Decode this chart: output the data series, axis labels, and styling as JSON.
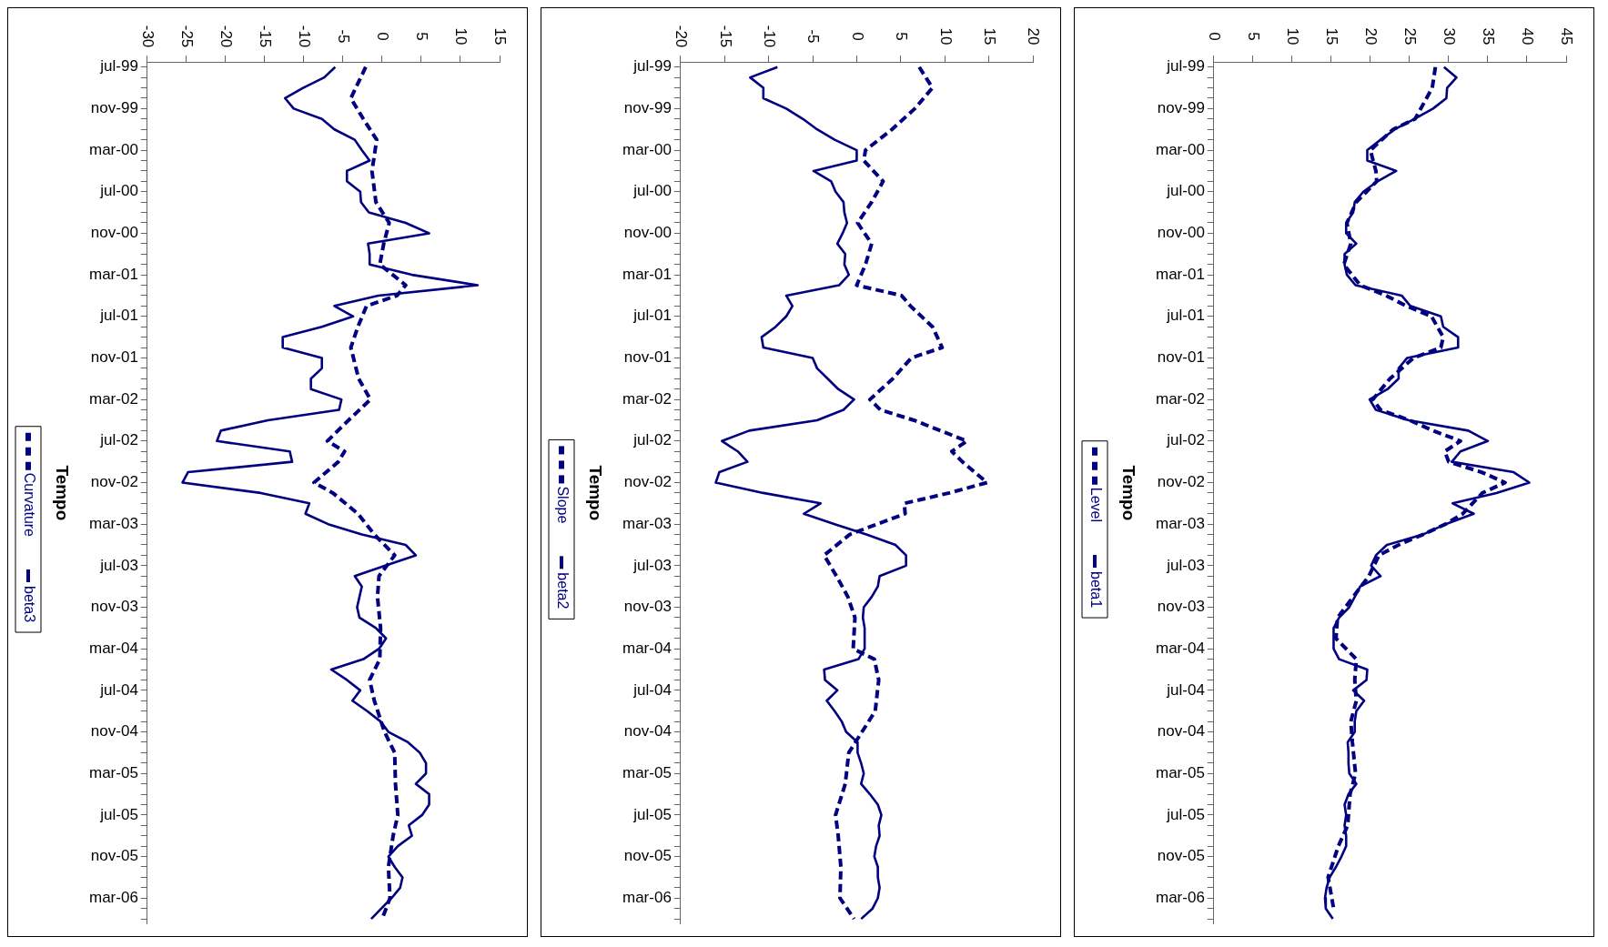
{
  "chart_data": [
    {
      "type": "line",
      "orientation": "horizontal",
      "ylabel": "Tempo",
      "marker": "none",
      "grid": false,
      "legend": "left",
      "x": [
        "1999-07",
        "1999-08",
        "1999-09",
        "1999-10",
        "1999-11",
        "1999-12",
        "2000-01",
        "2000-02",
        "2000-03",
        "2000-04",
        "2000-05",
        "2000-06",
        "2000-07",
        "2000-08",
        "2000-09",
        "2000-10",
        "2000-11",
        "2000-12",
        "2001-01",
        "2001-02",
        "2001-03",
        "2001-04",
        "2001-05",
        "2001-06",
        "2001-07",
        "2001-08",
        "2001-09",
        "2001-10",
        "2001-11",
        "2001-12",
        "2002-01",
        "2002-02",
        "2002-03",
        "2002-04",
        "2002-05",
        "2002-06",
        "2002-07",
        "2002-08",
        "2002-09",
        "2002-10",
        "2002-11",
        "2002-12",
        "2003-01",
        "2003-02",
        "2003-03",
        "2003-04",
        "2003-05",
        "2003-06",
        "2003-07",
        "2003-08",
        "2003-09",
        "2003-10",
        "2003-11",
        "2003-12",
        "2004-01",
        "2004-02",
        "2004-03",
        "2004-04",
        "2004-05",
        "2004-06",
        "2004-07",
        "2004-08",
        "2004-09",
        "2004-10",
        "2004-11",
        "2004-12",
        "2005-01",
        "2005-02",
        "2005-03",
        "2005-04",
        "2005-05",
        "2005-06",
        "2005-07",
        "2005-08",
        "2005-09",
        "2005-10",
        "2005-11",
        "2005-12",
        "2006-01",
        "2006-02",
        "2006-03",
        "2006-04",
        "2006-05"
      ],
      "ylim": [
        "2006-05-16",
        "1999-06-16"
      ],
      "yticks": [
        {
          "value": "1999-07",
          "label": "jul-99"
        },
        {
          "value": "1999-08",
          "label": null
        },
        {
          "value": "1999-09",
          "label": null
        },
        {
          "value": "1999-10",
          "label": null
        },
        {
          "value": "1999-11",
          "label": "nov-99"
        },
        {
          "value": "1999-12",
          "label": null
        },
        {
          "value": "2000-01",
          "label": null
        },
        {
          "value": "2000-02",
          "label": null
        },
        {
          "value": "2000-03",
          "label": "mar-00"
        },
        {
          "value": "2000-04",
          "label": null
        },
        {
          "value": "2000-05",
          "label": null
        },
        {
          "value": "2000-06",
          "label": null
        },
        {
          "value": "2000-07",
          "label": "jul-00"
        },
        {
          "value": "2000-08",
          "label": null
        },
        {
          "value": "2000-09",
          "label": null
        },
        {
          "value": "2000-10",
          "label": null
        },
        {
          "value": "2000-11",
          "label": "nov-00"
        },
        {
          "value": "2000-12",
          "label": null
        },
        {
          "value": "2001-01",
          "label": null
        },
        {
          "value": "2001-02",
          "label": null
        },
        {
          "value": "2001-03",
          "label": "mar-01"
        },
        {
          "value": "2001-04",
          "label": null
        },
        {
          "value": "2001-05",
          "label": null
        },
        {
          "value": "2001-06",
          "label": null
        },
        {
          "value": "2001-07",
          "label": "jul-01"
        },
        {
          "value": "2001-08",
          "label": null
        },
        {
          "value": "2001-09",
          "label": null
        },
        {
          "value": "2001-10",
          "label": null
        },
        {
          "value": "2001-11",
          "label": "nov-01"
        },
        {
          "value": "2001-12",
          "label": null
        },
        {
          "value": "2002-01",
          "label": null
        },
        {
          "value": "2002-02",
          "label": null
        },
        {
          "value": "2002-03",
          "label": "mar-02"
        },
        {
          "value": "2002-04",
          "label": null
        },
        {
          "value": "2002-05",
          "label": null
        },
        {
          "value": "2002-06",
          "label": null
        },
        {
          "value": "2002-07",
          "label": "jul-02"
        },
        {
          "value": "2002-08",
          "label": null
        },
        {
          "value": "2002-09",
          "label": null
        },
        {
          "value": "2002-10",
          "label": null
        },
        {
          "value": "2002-11",
          "label": "nov-02"
        },
        {
          "value": "2002-12",
          "label": null
        },
        {
          "value": "2003-01",
          "label": null
        },
        {
          "value": "2003-02",
          "label": null
        },
        {
          "value": "2003-03",
          "label": "mar-03"
        },
        {
          "value": "2003-04",
          "label": null
        },
        {
          "value": "2003-05",
          "label": null
        },
        {
          "value": "2003-06",
          "label": null
        },
        {
          "value": "2003-07",
          "label": "jul-03"
        },
        {
          "value": "2003-08",
          "label": null
        },
        {
          "value": "2003-09",
          "label": null
        },
        {
          "value": "2003-10",
          "label": null
        },
        {
          "value": "2003-11",
          "label": "nov-03"
        },
        {
          "value": "2003-12",
          "label": null
        },
        {
          "value": "2004-01",
          "label": null
        },
        {
          "value": "2004-02",
          "label": null
        },
        {
          "value": "2004-03",
          "label": "mar-04"
        },
        {
          "value": "2004-04",
          "label": null
        },
        {
          "value": "2004-05",
          "label": null
        },
        {
          "value": "2004-06",
          "label": null
        },
        {
          "value": "2004-07",
          "label": "jul-04"
        },
        {
          "value": "2004-08",
          "label": null
        },
        {
          "value": "2004-09",
          "label": null
        },
        {
          "value": "2004-10",
          "label": null
        },
        {
          "value": "2004-11",
          "label": "nov-04"
        },
        {
          "value": "2004-12",
          "label": null
        },
        {
          "value": "2005-01",
          "label": null
        },
        {
          "value": "2005-02",
          "label": null
        },
        {
          "value": "2005-03",
          "label": "mar-05"
        },
        {
          "value": "2005-04",
          "label": null
        },
        {
          "value": "2005-05",
          "label": null
        },
        {
          "value": "2005-06",
          "label": null
        },
        {
          "value": "2005-07",
          "label": "jul-05"
        },
        {
          "value": "2005-08",
          "label": null
        },
        {
          "value": "2005-09",
          "label": null
        },
        {
          "value": "2005-10",
          "label": null
        },
        {
          "value": "2005-11",
          "label": "nov-05"
        },
        {
          "value": "2005-12",
          "label": null
        },
        {
          "value": "2006-01",
          "label": null
        },
        {
          "value": "2006-02",
          "label": null
        },
        {
          "value": "2006-03",
          "label": "mar-06"
        },
        {
          "value": "2006-04",
          "label": null
        },
        {
          "value": "2006-05",
          "label": null
        }
      ],
      "xlim": [
        0,
        45
      ],
      "xticks": [
        0,
        5,
        10,
        15,
        20,
        25,
        30,
        35,
        40,
        45
      ],
      "series": [
        {
          "name": "Level",
          "color": "#000080",
          "line_style": "dashed",
          "x": [
            "1999-07",
            "1999-09",
            "1999-12",
            "2000-01",
            "2000-03",
            "2000-05",
            "2000-06",
            "2000-08",
            "2000-10",
            "2000-12",
            "2001-02",
            "2001-04",
            "2001-05",
            "2001-06",
            "2001-07",
            "2001-09",
            "2001-10",
            "2001-11",
            "2002-01",
            "2002-03",
            "2002-04",
            "2002-05",
            "2002-06",
            "2002-07",
            "2002-08",
            "2002-09",
            "2002-10",
            "2002-11",
            "2002-12",
            "2003-02",
            "2003-03",
            "2003-04",
            "2003-05",
            "2003-06",
            "2003-08",
            "2003-10",
            "2003-12",
            "2004-02",
            "2004-04",
            "2004-06",
            "2004-08",
            "2004-10",
            "2004-12",
            "2005-03",
            "2005-05",
            "2005-08",
            "2005-10",
            "2006-01",
            "2006-04"
          ],
          "values": [
            28.3,
            27.9,
            25.7,
            22.9,
            20.0,
            20.7,
            20.8,
            18.2,
            17.0,
            17.5,
            16.6,
            18.7,
            22.0,
            24.6,
            27.8,
            29.3,
            29.0,
            25.5,
            22.5,
            20.3,
            21.3,
            25.0,
            28.0,
            31.5,
            29.5,
            30.0,
            34.2,
            37.2,
            34.3,
            31.8,
            29.6,
            26.7,
            23.6,
            21.1,
            19.8,
            17.8,
            15.8,
            15.6,
            18.2,
            18.0,
            18.2,
            17.5,
            17.7,
            18.1,
            17.4,
            17.1,
            15.9,
            14.6,
            15.3
          ]
        },
        {
          "name": "beta1",
          "color": "#000080",
          "line_style": "solid",
          "values": [
            29.4,
            31.0,
            29.8,
            29.7,
            28.0,
            25.6,
            23.1,
            21.3,
            19.6,
            19.6,
            23.3,
            20.9,
            19.1,
            18.0,
            17.8,
            16.9,
            16.9,
            18.2,
            16.7,
            16.7,
            17.0,
            18.1,
            24.0,
            25.1,
            29.0,
            29.3,
            31.2,
            31.2,
            24.7,
            23.6,
            23.6,
            22.2,
            19.9,
            20.7,
            24.9,
            32.5,
            35.0,
            31.5,
            30.4,
            38.3,
            40.3,
            36.1,
            30.5,
            33.2,
            29.6,
            26.7,
            22.1,
            20.7,
            20.1,
            21.3,
            18.7,
            18.0,
            17.3,
            16.0,
            15.3,
            15.3,
            15.3,
            16.0,
            19.6,
            19.5,
            17.8,
            19.2,
            18.2,
            18.0,
            18.0,
            17.1,
            17.2,
            17.2,
            17.3,
            18.2,
            17.2,
            16.7,
            16.9,
            16.7,
            16.9,
            16.9,
            16.3,
            15.6,
            14.8,
            14.4,
            14.2,
            14.3,
            15.2
          ]
        }
      ]
    },
    {
      "type": "line",
      "orientation": "horizontal",
      "ylabel": "Tempo",
      "marker": "none",
      "grid": false,
      "legend": "left",
      "x": [
        "1999-07",
        "1999-08",
        "1999-09",
        "1999-10",
        "1999-11",
        "1999-12",
        "2000-01",
        "2000-02",
        "2000-03",
        "2000-04",
        "2000-05",
        "2000-06",
        "2000-07",
        "2000-08",
        "2000-09",
        "2000-10",
        "2000-11",
        "2000-12",
        "2001-01",
        "2001-02",
        "2001-03",
        "2001-04",
        "2001-05",
        "2001-06",
        "2001-07",
        "2001-08",
        "2001-09",
        "2001-10",
        "2001-11",
        "2001-12",
        "2002-01",
        "2002-02",
        "2002-03",
        "2002-04",
        "2002-05",
        "2002-06",
        "2002-07",
        "2002-08",
        "2002-09",
        "2002-10",
        "2002-11",
        "2002-12",
        "2003-01",
        "2003-02",
        "2003-03",
        "2003-04",
        "2003-05",
        "2003-06",
        "2003-07",
        "2003-08",
        "2003-09",
        "2003-10",
        "2003-11",
        "2003-12",
        "2004-01",
        "2004-02",
        "2004-03",
        "2004-04",
        "2004-05",
        "2004-06",
        "2004-07",
        "2004-08",
        "2004-09",
        "2004-10",
        "2004-11",
        "2004-12",
        "2005-01",
        "2005-02",
        "2005-03",
        "2005-04",
        "2005-05",
        "2005-06",
        "2005-07",
        "2005-08",
        "2005-09",
        "2005-10",
        "2005-11",
        "2005-12",
        "2006-01",
        "2006-02",
        "2006-03",
        "2006-04",
        "2006-05"
      ],
      "ylim": [
        "2006-05-16",
        "1999-06-16"
      ],
      "yticks": [
        {
          "value": "1999-07",
          "label": "jul-99"
        },
        {
          "value": "1999-08",
          "label": null
        },
        {
          "value": "1999-09",
          "label": null
        },
        {
          "value": "1999-10",
          "label": null
        },
        {
          "value": "1999-11",
          "label": "nov-99"
        },
        {
          "value": "1999-12",
          "label": null
        },
        {
          "value": "2000-01",
          "label": null
        },
        {
          "value": "2000-02",
          "label": null
        },
        {
          "value": "2000-03",
          "label": "mar-00"
        },
        {
          "value": "2000-04",
          "label": null
        },
        {
          "value": "2000-05",
          "label": null
        },
        {
          "value": "2000-06",
          "label": null
        },
        {
          "value": "2000-07",
          "label": "jul-00"
        },
        {
          "value": "2000-08",
          "label": null
        },
        {
          "value": "2000-09",
          "label": null
        },
        {
          "value": "2000-10",
          "label": null
        },
        {
          "value": "2000-11",
          "label": "nov-00"
        },
        {
          "value": "2000-12",
          "label": null
        },
        {
          "value": "2001-01",
          "label": null
        },
        {
          "value": "2001-02",
          "label": null
        },
        {
          "value": "2001-03",
          "label": "mar-01"
        },
        {
          "value": "2001-04",
          "label": null
        },
        {
          "value": "2001-05",
          "label": null
        },
        {
          "value": "2001-06",
          "label": null
        },
        {
          "value": "2001-07",
          "label": "jul-01"
        },
        {
          "value": "2001-08",
          "label": null
        },
        {
          "value": "2001-09",
          "label": null
        },
        {
          "value": "2001-10",
          "label": null
        },
        {
          "value": "2001-11",
          "label": "nov-01"
        },
        {
          "value": "2001-12",
          "label": null
        },
        {
          "value": "2002-01",
          "label": null
        },
        {
          "value": "2002-02",
          "label": null
        },
        {
          "value": "2002-03",
          "label": "mar-02"
        },
        {
          "value": "2002-04",
          "label": null
        },
        {
          "value": "2002-05",
          "label": null
        },
        {
          "value": "2002-06",
          "label": null
        },
        {
          "value": "2002-07",
          "label": "jul-02"
        },
        {
          "value": "2002-08",
          "label": null
        },
        {
          "value": "2002-09",
          "label": null
        },
        {
          "value": "2002-10",
          "label": null
        },
        {
          "value": "2002-11",
          "label": "nov-02"
        },
        {
          "value": "2002-12",
          "label": null
        },
        {
          "value": "2003-01",
          "label": null
        },
        {
          "value": "2003-02",
          "label": null
        },
        {
          "value": "2003-03",
          "label": "mar-03"
        },
        {
          "value": "2003-04",
          "label": null
        },
        {
          "value": "2003-05",
          "label": null
        },
        {
          "value": "2003-06",
          "label": null
        },
        {
          "value": "2003-07",
          "label": "jul-03"
        },
        {
          "value": "2003-08",
          "label": null
        },
        {
          "value": "2003-09",
          "label": null
        },
        {
          "value": "2003-10",
          "label": null
        },
        {
          "value": "2003-11",
          "label": "nov-03"
        },
        {
          "value": "2003-12",
          "label": null
        },
        {
          "value": "2004-01",
          "label": null
        },
        {
          "value": "2004-02",
          "label": null
        },
        {
          "value": "2004-03",
          "label": "mar-04"
        },
        {
          "value": "2004-04",
          "label": null
        },
        {
          "value": "2004-05",
          "label": null
        },
        {
          "value": "2004-06",
          "label": null
        },
        {
          "value": "2004-07",
          "label": "jul-04"
        },
        {
          "value": "2004-08",
          "label": null
        },
        {
          "value": "2004-09",
          "label": null
        },
        {
          "value": "2004-10",
          "label": null
        },
        {
          "value": "2004-11",
          "label": "nov-04"
        },
        {
          "value": "2004-12",
          "label": null
        },
        {
          "value": "2005-01",
          "label": null
        },
        {
          "value": "2005-02",
          "label": null
        },
        {
          "value": "2005-03",
          "label": "mar-05"
        },
        {
          "value": "2005-04",
          "label": null
        },
        {
          "value": "2005-05",
          "label": null
        },
        {
          "value": "2005-06",
          "label": null
        },
        {
          "value": "2005-07",
          "label": "jul-05"
        },
        {
          "value": "2005-08",
          "label": null
        },
        {
          "value": "2005-09",
          "label": null
        },
        {
          "value": "2005-10",
          "label": null
        },
        {
          "value": "2005-11",
          "label": "nov-05"
        },
        {
          "value": "2005-12",
          "label": null
        },
        {
          "value": "2006-01",
          "label": null
        },
        {
          "value": "2006-02",
          "label": null
        },
        {
          "value": "2006-03",
          "label": "mar-06"
        },
        {
          "value": "2006-04",
          "label": null
        },
        {
          "value": "2006-05",
          "label": null
        }
      ],
      "xlim": [
        -20,
        20
      ],
      "xticks": [
        -20,
        -15,
        -10,
        -5,
        0,
        5,
        10,
        15,
        20
      ],
      "series": [
        {
          "name": "Slope",
          "color": "#000080",
          "line_style": "dashed",
          "x": [
            "1999-07",
            "1999-09",
            "1999-11",
            "2000-01",
            "2000-03",
            "2000-04",
            "2000-06",
            "2000-08",
            "2000-10",
            "2000-12",
            "2001-02",
            "2001-04",
            "2001-05",
            "2001-06",
            "2001-08",
            "2001-10",
            "2001-11",
            "2002-01",
            "2002-03",
            "2002-04",
            "2002-05",
            "2002-06",
            "2002-07",
            "2002-08",
            "2002-09",
            "2002-11",
            "2002-12",
            "2003-01",
            "2003-02",
            "2003-03",
            "2003-04",
            "2003-06",
            "2003-08",
            "2003-10",
            "2003-12",
            "2004-03",
            "2004-04",
            "2004-06",
            "2004-09",
            "2004-11",
            "2005-01",
            "2005-04",
            "2005-07",
            "2005-09",
            "2005-12",
            "2006-03",
            "2006-05"
          ],
          "values": [
            7.1,
            8.6,
            6.6,
            4.0,
            1.0,
            0.8,
            3.0,
            1.7,
            0.1,
            1.7,
            1.0,
            0,
            5.1,
            6.1,
            8.6,
            9.7,
            6.2,
            4.1,
            1.5,
            2.7,
            6.5,
            9.5,
            12.5,
            10.8,
            12.0,
            14.8,
            10.5,
            5.4,
            5.5,
            2.3,
            -0.8,
            -3.7,
            -2.3,
            -1.0,
            -0.2,
            -0.4,
            2.0,
            2.5,
            2.1,
            0.6,
            -0.9,
            -1.3,
            -2.4,
            -2.1,
            -1.8,
            -1.9,
            -0.3
          ]
        },
        {
          "name": "beta2",
          "color": "#000080",
          "line_style": "solid",
          "values": [
            -9.0,
            -12.1,
            -10.6,
            -10.6,
            -8.0,
            -6.1,
            -4.5,
            -2.5,
            0,
            0,
            -4.9,
            -2.9,
            -2.4,
            -1.5,
            -1.4,
            -1.1,
            -1.6,
            -2.2,
            -1.3,
            -1.4,
            -0.9,
            -2.0,
            -8.0,
            -7.3,
            -8.0,
            -9.2,
            -10.8,
            -10.6,
            -5.0,
            -4.5,
            -3.3,
            -2.1,
            -0.3,
            -1.5,
            -4.5,
            -12.2,
            -15.3,
            -13.5,
            -12.4,
            -15.6,
            -16.0,
            -10.6,
            -4.1,
            -6.0,
            -2.5,
            1.1,
            4.4,
            5.6,
            5.6,
            2.6,
            2.4,
            1.7,
            0.8,
            0.7,
            0.9,
            0.9,
            0.9,
            0.2,
            -3.7,
            -3.6,
            -2.2,
            -3.4,
            -2.5,
            -1.7,
            -1.2,
            0.1,
            0.1,
            0.5,
            0.8,
            0.5,
            1.5,
            2.4,
            2.8,
            2.5,
            2.6,
            2.2,
            2.0,
            2.4,
            2.4,
            2.6,
            2.4,
            1.8,
            0.5
          ]
        }
      ]
    },
    {
      "type": "line",
      "orientation": "horizontal",
      "ylabel": "Tempo",
      "marker": "none",
      "grid": false,
      "legend": "left",
      "x": [
        "1999-07",
        "1999-08",
        "1999-09",
        "1999-10",
        "1999-11",
        "1999-12",
        "2000-01",
        "2000-02",
        "2000-03",
        "2000-04",
        "2000-05",
        "2000-06",
        "2000-07",
        "2000-08",
        "2000-09",
        "2000-10",
        "2000-11",
        "2000-12",
        "2001-01",
        "2001-02",
        "2001-03",
        "2001-04",
        "2001-05",
        "2001-06",
        "2001-07",
        "2001-08",
        "2001-09",
        "2001-10",
        "2001-11",
        "2001-12",
        "2002-01",
        "2002-02",
        "2002-03",
        "2002-04",
        "2002-05",
        "2002-06",
        "2002-07",
        "2002-08",
        "2002-09",
        "2002-10",
        "2002-11",
        "2002-12",
        "2003-01",
        "2003-02",
        "2003-03",
        "2003-04",
        "2003-05",
        "2003-06",
        "2003-07",
        "2003-08",
        "2003-09",
        "2003-10",
        "2003-11",
        "2003-12",
        "2004-01",
        "2004-02",
        "2004-03",
        "2004-04",
        "2004-05",
        "2004-06",
        "2004-07",
        "2004-08",
        "2004-09",
        "2004-10",
        "2004-11",
        "2004-12",
        "2005-01",
        "2005-02",
        "2005-03",
        "2005-04",
        "2005-05",
        "2005-06",
        "2005-07",
        "2005-08",
        "2005-09",
        "2005-10",
        "2005-11",
        "2005-12",
        "2006-01",
        "2006-02",
        "2006-03",
        "2006-04",
        "2006-05"
      ],
      "ylim": [
        "2006-05-16",
        "1999-06-16"
      ],
      "yticks": [
        {
          "value": "1999-07",
          "label": "jul-99"
        },
        {
          "value": "1999-08",
          "label": null
        },
        {
          "value": "1999-09",
          "label": null
        },
        {
          "value": "1999-10",
          "label": null
        },
        {
          "value": "1999-11",
          "label": "nov-99"
        },
        {
          "value": "1999-12",
          "label": null
        },
        {
          "value": "2000-01",
          "label": null
        },
        {
          "value": "2000-02",
          "label": null
        },
        {
          "value": "2000-03",
          "label": "mar-00"
        },
        {
          "value": "2000-04",
          "label": null
        },
        {
          "value": "2000-05",
          "label": null
        },
        {
          "value": "2000-06",
          "label": null
        },
        {
          "value": "2000-07",
          "label": "jul-00"
        },
        {
          "value": "2000-08",
          "label": null
        },
        {
          "value": "2000-09",
          "label": null
        },
        {
          "value": "2000-10",
          "label": null
        },
        {
          "value": "2000-11",
          "label": "nov-00"
        },
        {
          "value": "2000-12",
          "label": null
        },
        {
          "value": "2001-01",
          "label": null
        },
        {
          "value": "2001-02",
          "label": null
        },
        {
          "value": "2001-03",
          "label": "mar-01"
        },
        {
          "value": "2001-04",
          "label": null
        },
        {
          "value": "2001-05",
          "label": null
        },
        {
          "value": "2001-06",
          "label": null
        },
        {
          "value": "2001-07",
          "label": "jul-01"
        },
        {
          "value": "2001-08",
          "label": null
        },
        {
          "value": "2001-09",
          "label": null
        },
        {
          "value": "2001-10",
          "label": null
        },
        {
          "value": "2001-11",
          "label": "nov-01"
        },
        {
          "value": "2001-12",
          "label": null
        },
        {
          "value": "2002-01",
          "label": null
        },
        {
          "value": "2002-02",
          "label": null
        },
        {
          "value": "2002-03",
          "label": "mar-02"
        },
        {
          "value": "2002-04",
          "label": null
        },
        {
          "value": "2002-05",
          "label": null
        },
        {
          "value": "2002-06",
          "label": null
        },
        {
          "value": "2002-07",
          "label": "jul-02"
        },
        {
          "value": "2002-08",
          "label": null
        },
        {
          "value": "2002-09",
          "label": null
        },
        {
          "value": "2002-10",
          "label": null
        },
        {
          "value": "2002-11",
          "label": "nov-02"
        },
        {
          "value": "2002-12",
          "label": null
        },
        {
          "value": "2003-01",
          "label": null
        },
        {
          "value": "2003-02",
          "label": null
        },
        {
          "value": "2003-03",
          "label": "mar-03"
        },
        {
          "value": "2003-04",
          "label": null
        },
        {
          "value": "2003-05",
          "label": null
        },
        {
          "value": "2003-06",
          "label": null
        },
        {
          "value": "2003-07",
          "label": "jul-03"
        },
        {
          "value": "2003-08",
          "label": null
        },
        {
          "value": "2003-09",
          "label": null
        },
        {
          "value": "2003-10",
          "label": null
        },
        {
          "value": "2003-11",
          "label": "nov-03"
        },
        {
          "value": "2003-12",
          "label": null
        },
        {
          "value": "2004-01",
          "label": null
        },
        {
          "value": "2004-02",
          "label": null
        },
        {
          "value": "2004-03",
          "label": "mar-04"
        },
        {
          "value": "2004-04",
          "label": null
        },
        {
          "value": "2004-05",
          "label": null
        },
        {
          "value": "2004-06",
          "label": null
        },
        {
          "value": "2004-07",
          "label": "jul-04"
        },
        {
          "value": "2004-08",
          "label": null
        },
        {
          "value": "2004-09",
          "label": null
        },
        {
          "value": "2004-10",
          "label": null
        },
        {
          "value": "2004-11",
          "label": "nov-04"
        },
        {
          "value": "2004-12",
          "label": null
        },
        {
          "value": "2005-01",
          "label": null
        },
        {
          "value": "2005-02",
          "label": null
        },
        {
          "value": "2005-03",
          "label": "mar-05"
        },
        {
          "value": "2005-04",
          "label": null
        },
        {
          "value": "2005-05",
          "label": null
        },
        {
          "value": "2005-06",
          "label": null
        },
        {
          "value": "2005-07",
          "label": "jul-05"
        },
        {
          "value": "2005-08",
          "label": null
        },
        {
          "value": "2005-09",
          "label": null
        },
        {
          "value": "2005-10",
          "label": null
        },
        {
          "value": "2005-11",
          "label": "nov-05"
        },
        {
          "value": "2005-12",
          "label": null
        },
        {
          "value": "2006-01",
          "label": null
        },
        {
          "value": "2006-02",
          "label": null
        },
        {
          "value": "2006-03",
          "label": "mar-06"
        },
        {
          "value": "2006-04",
          "label": null
        },
        {
          "value": "2006-05",
          "label": null
        }
      ],
      "xlim": [
        -30,
        15
      ],
      "xticks": [
        -30,
        -25,
        -20,
        -15,
        -10,
        -5,
        0,
        5,
        10,
        15
      ],
      "series": [
        {
          "name": "Curvature",
          "color": "#000080",
          "line_style": "dashed",
          "x": [
            "1999-07",
            "1999-10",
            "1999-12",
            "2000-02",
            "2000-05",
            "2000-08",
            "2000-10",
            "2000-12",
            "2001-02",
            "2001-04",
            "2001-05",
            "2001-06",
            "2001-08",
            "2001-10",
            "2002-01",
            "2002-03",
            "2002-05",
            "2002-07",
            "2002-08",
            "2002-09",
            "2002-11",
            "2002-12",
            "2003-02",
            "2003-04",
            "2003-06",
            "2003-08",
            "2003-10",
            "2004-01",
            "2004-04",
            "2004-06",
            "2004-08",
            "2004-11",
            "2005-01",
            "2005-04",
            "2005-07",
            "2005-09",
            "2005-12",
            "2006-03",
            "2006-05"
          ],
          "values": [
            -2.1,
            -4.0,
            -2.4,
            -0.7,
            -1.3,
            -0.8,
            0.9,
            0.2,
            -0.3,
            3.0,
            1.9,
            -2.0,
            -3.1,
            -4.0,
            -3.0,
            -1.5,
            -4.3,
            -7.0,
            -4.8,
            -5.6,
            -8.7,
            -6.3,
            -3.1,
            -1.0,
            1.6,
            -0.4,
            -0.6,
            -0.2,
            -0.3,
            -1.6,
            -1.0,
            0.3,
            1.6,
            1.7,
            2.0,
            1.4,
            0.8,
            1.0,
            0
          ]
        },
        {
          "name": "beta3",
          "color": "#000080",
          "line_style": "solid",
          "values": [
            -6.0,
            -7.4,
            -10.1,
            -12.4,
            -11.3,
            -7.7,
            -6.1,
            -3.5,
            -2.6,
            -1.6,
            -4.5,
            -4.5,
            -2.8,
            -2.7,
            -1.7,
            3.0,
            6.0,
            -1.8,
            -1.6,
            -1.6,
            3.8,
            12.2,
            -0.5,
            -6.1,
            -3.7,
            -7.7,
            -12.7,
            -12.7,
            -7.7,
            -7.7,
            -9.1,
            -9.1,
            -5.2,
            -5.5,
            -14.6,
            -20.6,
            -21.1,
            -11.8,
            -11.5,
            -24.8,
            -25.5,
            -15.5,
            -9.3,
            -9.8,
            -6.9,
            -2.6,
            3.0,
            4.3,
            0.4,
            -3.5,
            -2.6,
            -2.9,
            -3.2,
            -2.9,
            -0.8,
            0.5,
            -0.4,
            -2.4,
            -6.5,
            -4.5,
            -2.8,
            -3.8,
            -1.9,
            -0.2,
            0.8,
            3.3,
            4.8,
            5.6,
            5.6,
            4.3,
            6.0,
            6.0,
            5.1,
            3.4,
            3.8,
            2.0,
            0.8,
            1.6,
            2.6,
            2.3,
            1.2,
            -0.1,
            -1.4
          ]
        }
      ]
    }
  ]
}
